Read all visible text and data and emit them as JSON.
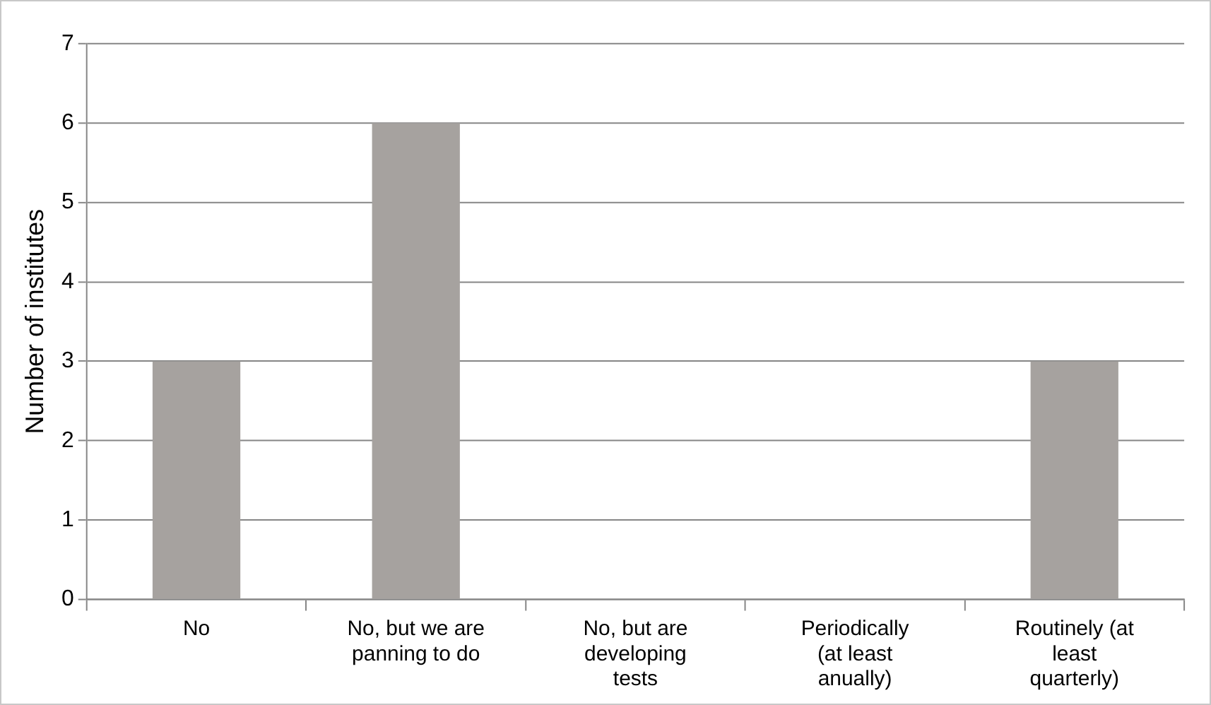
{
  "chart_data": {
    "type": "bar",
    "ylabel": "Number of institutes",
    "categories": [
      "No",
      "No, but we are panning to do",
      "No, but are developing tests",
      "Periodically (at least anually)",
      "Routinely (at least quarterly)"
    ],
    "values": [
      3,
      6,
      0,
      0,
      3
    ],
    "color": "#a6a29f",
    "ylim": [
      0,
      7
    ],
    "yticks": [
      0,
      1,
      2,
      3,
      4,
      5,
      6,
      7
    ],
    "grid": "y",
    "legend": false
  }
}
